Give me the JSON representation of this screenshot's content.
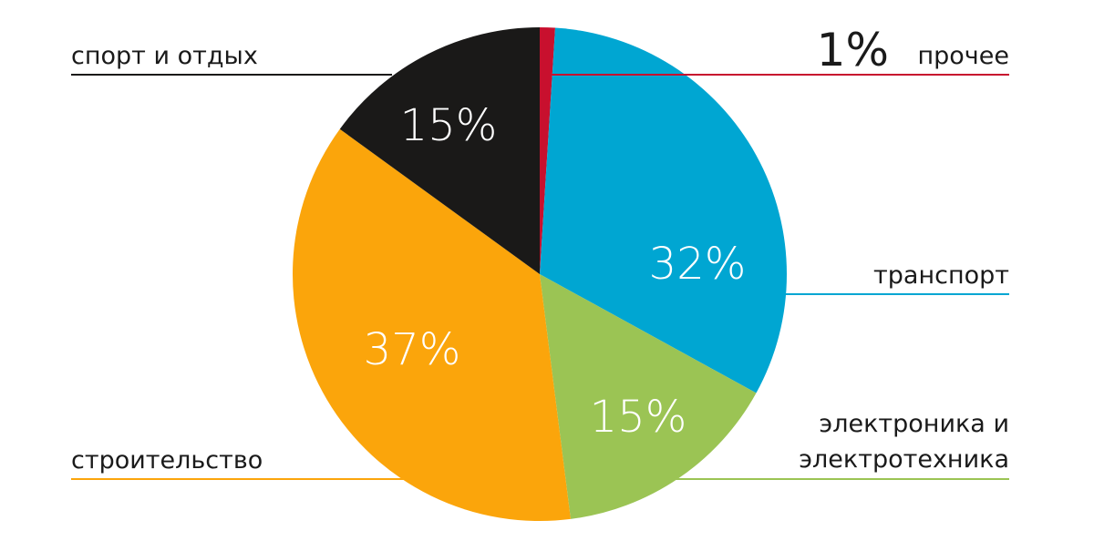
{
  "chart_data": {
    "type": "pie",
    "start": "12 o'clock",
    "direction": "clockwise",
    "slices": [
      {
        "label": "прочее",
        "value": 1,
        "value_label": "1%",
        "color": "#c8102e"
      },
      {
        "label": "транспорт",
        "value": 32,
        "value_label": "32%",
        "color": "#00a6d2"
      },
      {
        "label_lines": [
          "электроника и",
          "электротехника"
        ],
        "value": 15,
        "value_label": "15%",
        "color": "#9bc454"
      },
      {
        "label": "строительство",
        "value": 37,
        "value_label": "37%",
        "color": "#fba50b"
      },
      {
        "label": "спорт и отдых",
        "value": 15,
        "value_label": "15%",
        "color": "#1a1918"
      }
    ]
  }
}
